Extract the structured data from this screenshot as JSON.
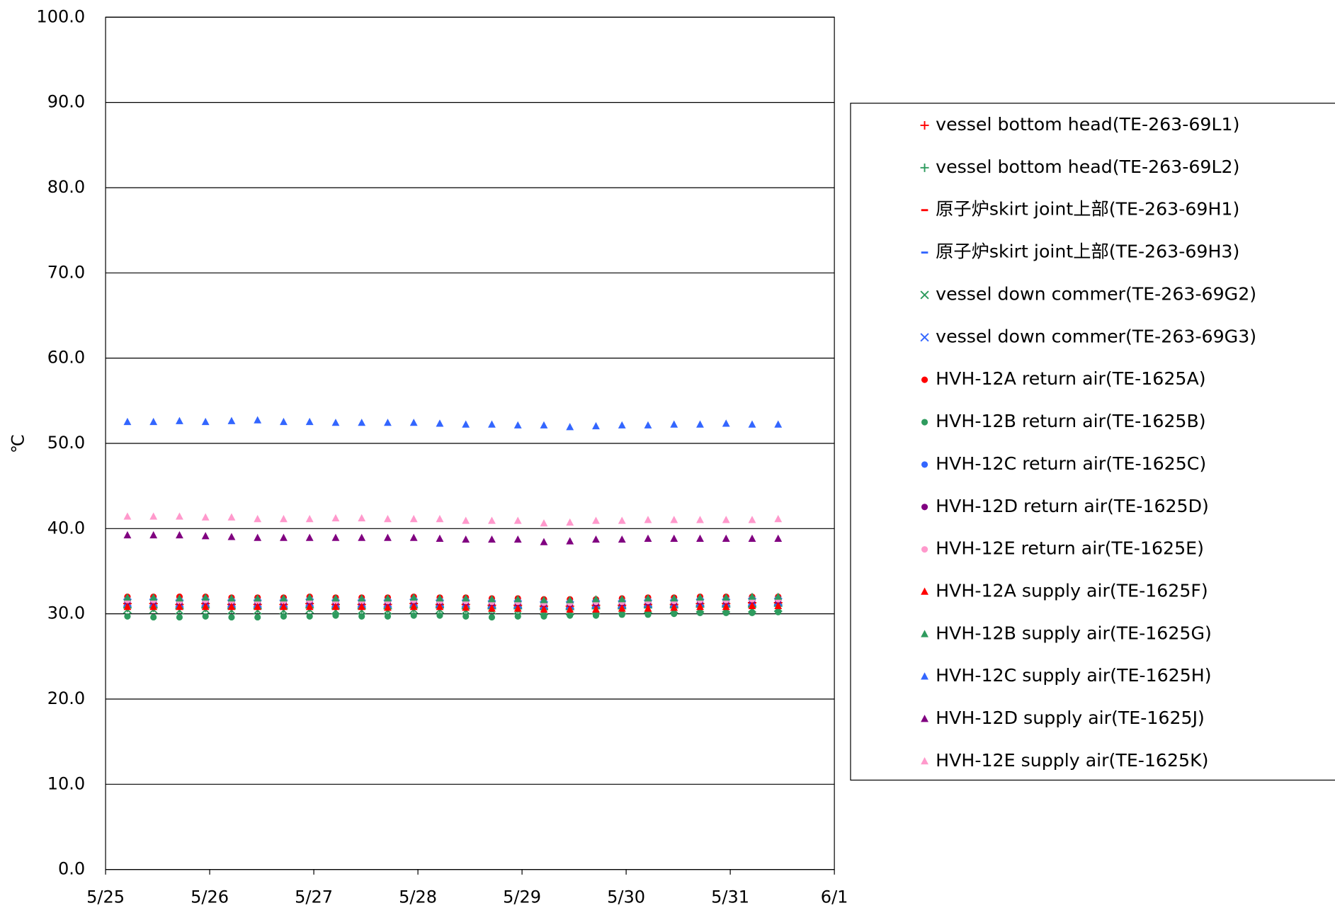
{
  "chart_data": {
    "type": "scatter",
    "y_label": "℃",
    "xlim": [
      25,
      32
    ],
    "xticks": [
      {
        "value": 25,
        "label": "5/25"
      },
      {
        "value": 26,
        "label": "5/26"
      },
      {
        "value": 27,
        "label": "5/27"
      },
      {
        "value": 28,
        "label": "5/28"
      },
      {
        "value": 29,
        "label": "5/29"
      },
      {
        "value": 30,
        "label": "5/30"
      },
      {
        "value": 31,
        "label": "5/31"
      },
      {
        "value": 32,
        "label": "6/1"
      }
    ],
    "ylim": [
      0,
      100
    ],
    "yticks": [
      {
        "value": 0,
        "label": "0.0"
      },
      {
        "value": 10,
        "label": "10.0"
      },
      {
        "value": 20,
        "label": "20.0"
      },
      {
        "value": 30,
        "label": "30.0"
      },
      {
        "value": 40,
        "label": "40.0"
      },
      {
        "value": 50,
        "label": "50.0"
      },
      {
        "value": 60,
        "label": "60.0"
      },
      {
        "value": 70,
        "label": "70.0"
      },
      {
        "value": 80,
        "label": "80.0"
      },
      {
        "value": 90,
        "label": "90.0"
      },
      {
        "value": 100,
        "label": "100.0"
      }
    ],
    "grid": true,
    "legend": "right",
    "x": [
      25.21,
      25.46,
      25.71,
      25.96,
      26.21,
      26.46,
      26.71,
      26.96,
      27.21,
      27.46,
      27.71,
      27.96,
      28.21,
      28.46,
      28.71,
      28.96,
      29.21,
      29.46,
      29.71,
      29.96,
      30.21,
      30.46,
      30.71,
      30.96,
      31.21,
      31.46
    ],
    "series": [
      {
        "name": "vessel bottom head(TE-263-69L1)",
        "color": "#ff0000",
        "marker": "plus",
        "values": [
          31.2,
          31.2,
          31.1,
          31.2,
          31.1,
          31.1,
          31.1,
          31.2,
          31.1,
          31.1,
          31.1,
          31.2,
          31.1,
          31.1,
          31.0,
          31.0,
          30.9,
          30.9,
          31.0,
          31.0,
          31.1,
          31.1,
          31.2,
          31.2,
          31.3,
          31.3
        ]
      },
      {
        "name": "vessel bottom head(TE-263-69L2)",
        "color": "#2e9b5e",
        "marker": "plus",
        "values": [
          30.7,
          30.7,
          30.6,
          30.7,
          30.6,
          30.6,
          30.6,
          30.7,
          30.6,
          30.6,
          30.6,
          30.7,
          30.7,
          30.6,
          30.6,
          30.6,
          30.5,
          30.5,
          30.6,
          30.6,
          30.7,
          30.7,
          30.8,
          30.8,
          30.8,
          30.9
        ]
      },
      {
        "name": "原子炉skirt joint上部(TE-263-69H1)",
        "color": "#ff0000",
        "marker": "dash",
        "values": [
          31.0,
          31.0,
          30.9,
          31.0,
          30.9,
          30.9,
          30.9,
          31.0,
          30.9,
          30.9,
          30.9,
          31.0,
          30.9,
          30.9,
          30.8,
          30.8,
          30.7,
          30.7,
          30.8,
          30.8,
          30.9,
          30.9,
          31.0,
          31.0,
          31.1,
          31.1
        ]
      },
      {
        "name": "原子炉skirt joint上部(TE-263-69H3)",
        "color": "#3366ff",
        "marker": "dash",
        "values": [
          31.6,
          31.6,
          31.5,
          31.6,
          31.5,
          31.5,
          31.5,
          31.6,
          31.5,
          31.5,
          31.5,
          31.6,
          31.5,
          31.5,
          31.4,
          31.4,
          31.3,
          31.3,
          31.4,
          31.4,
          31.5,
          31.5,
          31.6,
          31.6,
          31.7,
          31.7
        ]
      },
      {
        "name": "vessel down commer(TE-263-69G2)",
        "color": "#2e9b5e",
        "marker": "x",
        "values": [
          30.5,
          30.5,
          30.4,
          30.5,
          30.4,
          30.4,
          30.4,
          30.5,
          30.4,
          30.4,
          30.4,
          30.5,
          30.5,
          30.4,
          30.4,
          30.4,
          30.3,
          30.3,
          30.4,
          30.4,
          30.5,
          30.5,
          30.6,
          30.6,
          30.6,
          30.7
        ]
      },
      {
        "name": "vessel down commer(TE-263-69G3)",
        "color": "#3366ff",
        "marker": "x",
        "values": [
          31.3,
          31.3,
          31.2,
          31.3,
          31.2,
          31.2,
          31.2,
          31.3,
          31.2,
          31.2,
          31.2,
          31.3,
          31.2,
          31.2,
          31.1,
          31.1,
          31.0,
          31.0,
          31.1,
          31.1,
          31.2,
          31.2,
          31.3,
          31.3,
          31.4,
          31.4
        ]
      },
      {
        "name": "HVH-12A return air(TE-1625A)",
        "color": "#ff0000",
        "marker": "circle",
        "values": [
          32.0,
          32.0,
          32.0,
          32.0,
          31.9,
          31.9,
          31.9,
          32.0,
          31.9,
          31.9,
          31.9,
          32.0,
          31.9,
          31.9,
          31.8,
          31.8,
          31.7,
          31.7,
          31.7,
          31.8,
          31.9,
          31.9,
          32.0,
          32.0,
          32.0,
          32.0
        ]
      },
      {
        "name": "HVH-12B return air(TE-1625B)",
        "color": "#2e9b5e",
        "marker": "circle",
        "values": [
          29.7,
          29.6,
          29.6,
          29.7,
          29.6,
          29.6,
          29.7,
          29.7,
          29.8,
          29.7,
          29.7,
          29.8,
          29.8,
          29.7,
          29.6,
          29.7,
          29.7,
          29.8,
          29.8,
          29.9,
          29.9,
          30.0,
          30.1,
          30.1,
          30.1,
          30.2
        ]
      },
      {
        "name": "HVH-12C return air(TE-1625C)",
        "color": "#3366ff",
        "marker": "circle",
        "values": [
          31.7,
          31.7,
          31.6,
          31.7,
          31.6,
          31.6,
          31.6,
          31.7,
          31.6,
          31.6,
          31.6,
          31.7,
          31.6,
          31.6,
          31.5,
          31.5,
          31.4,
          31.4,
          31.5,
          31.5,
          31.6,
          31.6,
          31.7,
          31.7,
          31.8,
          31.8
        ]
      },
      {
        "name": "HVH-12D return air(TE-1625D)",
        "color": "#800080",
        "marker": "circle",
        "values": [
          31.4,
          31.4,
          31.3,
          31.4,
          31.3,
          31.3,
          31.3,
          31.4,
          31.3,
          31.3,
          31.3,
          31.4,
          31.3,
          31.3,
          31.2,
          31.2,
          31.1,
          31.1,
          31.2,
          31.2,
          31.3,
          31.3,
          31.4,
          31.4,
          31.5,
          31.5
        ]
      },
      {
        "name": "HVH-12E return air(TE-1625E)",
        "color": "#ff99cc",
        "marker": "circle",
        "values": [
          31.6,
          31.6,
          31.5,
          31.6,
          31.5,
          31.5,
          31.5,
          31.6,
          31.5,
          31.5,
          31.5,
          31.6,
          31.5,
          31.5,
          31.4,
          31.4,
          31.3,
          31.3,
          31.4,
          31.4,
          31.5,
          31.5,
          31.6,
          31.6,
          31.7,
          31.7
        ]
      },
      {
        "name": "HVH-12A supply air(TE-1625F)",
        "color": "#ff0000",
        "marker": "triangle",
        "values": [
          30.8,
          30.8,
          30.8,
          30.8,
          30.8,
          30.8,
          30.8,
          30.8,
          30.8,
          30.8,
          30.7,
          30.8,
          30.8,
          30.7,
          30.6,
          30.6,
          30.5,
          30.5,
          30.5,
          30.6,
          30.6,
          30.7,
          30.8,
          30.8,
          30.9,
          30.9
        ]
      },
      {
        "name": "HVH-12B supply air(TE-1625G)",
        "color": "#2e9b5e",
        "marker": "triangle",
        "values": [
          31.9,
          31.9,
          31.8,
          31.9,
          31.8,
          31.8,
          31.8,
          31.9,
          31.8,
          31.8,
          31.8,
          31.9,
          31.8,
          31.8,
          31.7,
          31.7,
          31.6,
          31.6,
          31.7,
          31.7,
          31.8,
          31.8,
          31.9,
          31.9,
          32.0,
          32.0
        ]
      },
      {
        "name": "HVH-12C supply air(TE-1625H)",
        "color": "#3366ff",
        "marker": "triangle",
        "values": [
          52.5,
          52.5,
          52.6,
          52.5,
          52.6,
          52.7,
          52.5,
          52.5,
          52.4,
          52.4,
          52.4,
          52.4,
          52.3,
          52.2,
          52.2,
          52.1,
          52.1,
          51.9,
          52.0,
          52.1,
          52.1,
          52.2,
          52.2,
          52.3,
          52.2,
          52.2
        ]
      },
      {
        "name": "HVH-12D supply air(TE-1625J)",
        "color": "#800080",
        "marker": "triangle",
        "values": [
          39.2,
          39.2,
          39.2,
          39.1,
          39.0,
          38.9,
          38.9,
          38.9,
          38.9,
          38.9,
          38.9,
          38.9,
          38.8,
          38.7,
          38.7,
          38.7,
          38.4,
          38.5,
          38.7,
          38.7,
          38.8,
          38.8,
          38.8,
          38.8,
          38.8,
          38.8
        ]
      },
      {
        "name": "HVH-12E supply air(TE-1625K)",
        "color": "#ff99cc",
        "marker": "triangle",
        "values": [
          41.4,
          41.4,
          41.4,
          41.3,
          41.3,
          41.1,
          41.1,
          41.1,
          41.2,
          41.2,
          41.1,
          41.1,
          41.1,
          40.9,
          40.9,
          40.9,
          40.6,
          40.7,
          40.9,
          40.9,
          41.0,
          41.0,
          41.0,
          41.0,
          41.0,
          41.1
        ]
      }
    ]
  }
}
